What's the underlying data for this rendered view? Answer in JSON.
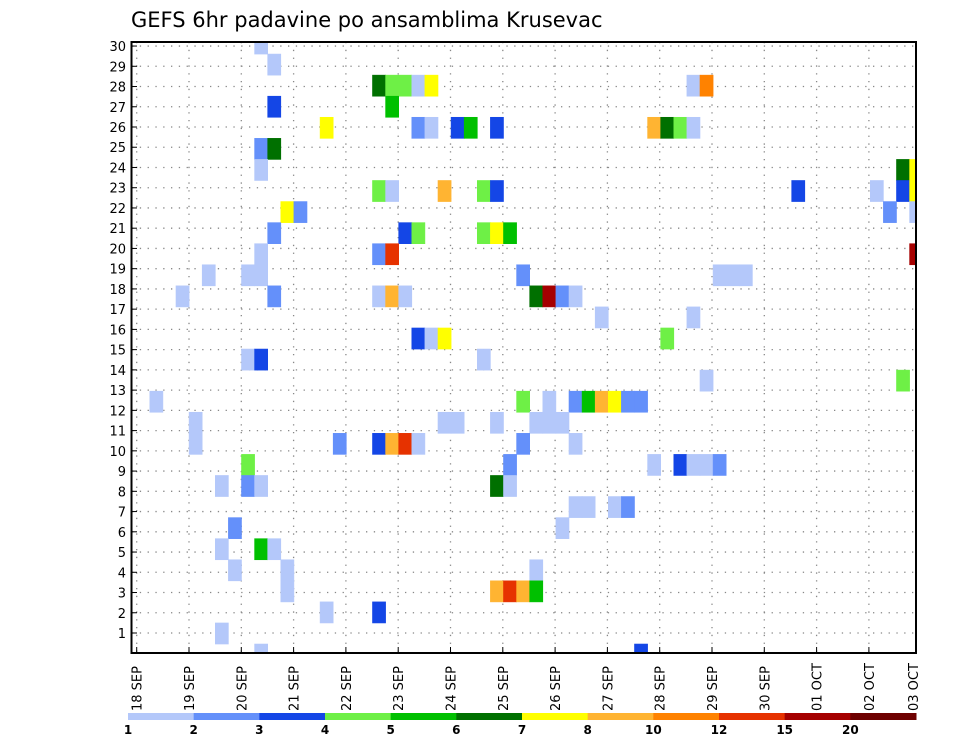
{
  "chart_data": {
    "type": "heatmap",
    "title": "GEFS 6hr padavine po ansamblima Krusevac",
    "xlabel": "",
    "ylabel": "",
    "x_unit": "6-hour steps from 18 SEP",
    "x_tick_labels": [
      "18 SEP",
      "19 SEP",
      "20 SEP",
      "21 SEP",
      "22 SEP",
      "23 SEP",
      "24 SEP",
      "25 SEP",
      "26 SEP",
      "27 SEP",
      "28 SEP",
      "29 SEP",
      "30 SEP",
      "01 OCT",
      "02 OCT",
      "03 OCT"
    ],
    "y_tick_labels": [
      "1",
      "2",
      "3",
      "4",
      "5",
      "6",
      "7",
      "8",
      "9",
      "10",
      "11",
      "12",
      "13",
      "14",
      "15",
      "16",
      "17",
      "18",
      "19",
      "20",
      "21",
      "22",
      "23",
      "24",
      "25",
      "26",
      "27",
      "28",
      "29",
      "30"
    ],
    "ylim": [
      0,
      30
    ],
    "grid": true,
    "colorbar": {
      "placement": "bottom",
      "labels": [
        "1",
        "2",
        "3",
        "4",
        "5",
        "6",
        "7",
        "8",
        "10",
        "12",
        "15",
        "20"
      ],
      "colors": [
        "#b4c8fa",
        "#6490fa",
        "#1446e6",
        "#6ef046",
        "#00c000",
        "#007000",
        "#ffff00",
        "#ffb432",
        "#ff8200",
        "#e63200",
        "#a50000",
        "#6e0000"
      ]
    },
    "cells_format": [
      "step",
      "member",
      "level_index"
    ],
    "cells": [
      [
        9,
        30,
        0
      ],
      [
        10,
        29,
        0
      ],
      [
        18,
        28,
        5
      ],
      [
        19,
        28,
        3
      ],
      [
        20,
        28,
        3
      ],
      [
        21,
        28,
        0
      ],
      [
        22,
        28,
        6
      ],
      [
        42,
        28,
        0
      ],
      [
        43,
        28,
        8
      ],
      [
        10,
        27,
        2
      ],
      [
        19,
        27,
        4
      ],
      [
        14,
        26,
        6
      ],
      [
        21,
        26,
        1
      ],
      [
        22,
        26,
        0
      ],
      [
        24,
        26,
        2
      ],
      [
        25,
        26,
        4
      ],
      [
        27,
        26,
        2
      ],
      [
        39,
        26,
        7
      ],
      [
        40,
        26,
        5
      ],
      [
        41,
        26,
        3
      ],
      [
        42,
        26,
        0
      ],
      [
        9,
        25,
        1
      ],
      [
        10,
        25,
        5
      ],
      [
        9,
        24,
        0
      ],
      [
        58,
        24,
        5
      ],
      [
        59,
        24,
        6
      ],
      [
        18,
        23,
        3
      ],
      [
        19,
        23,
        0
      ],
      [
        23,
        23,
        7
      ],
      [
        26,
        23,
        3
      ],
      [
        27,
        23,
        2
      ],
      [
        50,
        23,
        2
      ],
      [
        56,
        23,
        0
      ],
      [
        58,
        23,
        2
      ],
      [
        59,
        23,
        6
      ],
      [
        11,
        22,
        6
      ],
      [
        12,
        22,
        1
      ],
      [
        57,
        22,
        1
      ],
      [
        59,
        22,
        0
      ],
      [
        10,
        21,
        1
      ],
      [
        20,
        21,
        2
      ],
      [
        21,
        21,
        3
      ],
      [
        26,
        21,
        3
      ],
      [
        27,
        21,
        6
      ],
      [
        28,
        21,
        4
      ],
      [
        9,
        20,
        0
      ],
      [
        18,
        20,
        1
      ],
      [
        19,
        20,
        9
      ],
      [
        59,
        20,
        10
      ],
      [
        5,
        19,
        0
      ],
      [
        8,
        19,
        0
      ],
      [
        9,
        19,
        0
      ],
      [
        29,
        19,
        1
      ],
      [
        44,
        19,
        0
      ],
      [
        45,
        19,
        0
      ],
      [
        46,
        19,
        0
      ],
      [
        3,
        18,
        0
      ],
      [
        10,
        18,
        1
      ],
      [
        18,
        18,
        0
      ],
      [
        19,
        18,
        7
      ],
      [
        20,
        18,
        0
      ],
      [
        30,
        18,
        5
      ],
      [
        31,
        18,
        10
      ],
      [
        32,
        18,
        1
      ],
      [
        33,
        18,
        0
      ],
      [
        35,
        17,
        0
      ],
      [
        42,
        17,
        0
      ],
      [
        21,
        16,
        2
      ],
      [
        22,
        16,
        0
      ],
      [
        23,
        16,
        6
      ],
      [
        40,
        16,
        3
      ],
      [
        8,
        15,
        0
      ],
      [
        9,
        15,
        2
      ],
      [
        26,
        15,
        0
      ],
      [
        43,
        14,
        0
      ],
      [
        58,
        14,
        3
      ],
      [
        1,
        13,
        0
      ],
      [
        29,
        13,
        3
      ],
      [
        31,
        13,
        0
      ],
      [
        33,
        13,
        1
      ],
      [
        34,
        13,
        4
      ],
      [
        35,
        13,
        7
      ],
      [
        36,
        13,
        6
      ],
      [
        37,
        13,
        1
      ],
      [
        38,
        13,
        1
      ],
      [
        4,
        12,
        0
      ],
      [
        23,
        12,
        0
      ],
      [
        24,
        12,
        0
      ],
      [
        27,
        12,
        0
      ],
      [
        30,
        12,
        0
      ],
      [
        31,
        12,
        0
      ],
      [
        32,
        12,
        0
      ],
      [
        4,
        11,
        0
      ],
      [
        15,
        11,
        1
      ],
      [
        18,
        11,
        2
      ],
      [
        19,
        11,
        7
      ],
      [
        20,
        11,
        9
      ],
      [
        21,
        11,
        0
      ],
      [
        29,
        11,
        1
      ],
      [
        33,
        11,
        0
      ],
      [
        8,
        10,
        3
      ],
      [
        28,
        10,
        1
      ],
      [
        39,
        10,
        0
      ],
      [
        41,
        10,
        2
      ],
      [
        42,
        10,
        0
      ],
      [
        43,
        10,
        0
      ],
      [
        44,
        10,
        1
      ],
      [
        6,
        9,
        0
      ],
      [
        8,
        9,
        1
      ],
      [
        9,
        9,
        0
      ],
      [
        27,
        9,
        5
      ],
      [
        28,
        9,
        0
      ],
      [
        33,
        8,
        0
      ],
      [
        34,
        8,
        0
      ],
      [
        36,
        8,
        0
      ],
      [
        37,
        8,
        1
      ],
      [
        7,
        7,
        1
      ],
      [
        32,
        7,
        0
      ],
      [
        6,
        6,
        0
      ],
      [
        9,
        6,
        4
      ],
      [
        10,
        6,
        0
      ],
      [
        7,
        5,
        0
      ],
      [
        11,
        5,
        0
      ],
      [
        30,
        5,
        0
      ],
      [
        11,
        4,
        0
      ],
      [
        27,
        4,
        7
      ],
      [
        28,
        4,
        9
      ],
      [
        29,
        4,
        7
      ],
      [
        30,
        4,
        4
      ],
      [
        14,
        3,
        0
      ],
      [
        18,
        3,
        2
      ],
      [
        6,
        2,
        0
      ],
      [
        9,
        1,
        0
      ],
      [
        38,
        1,
        2
      ]
    ]
  }
}
